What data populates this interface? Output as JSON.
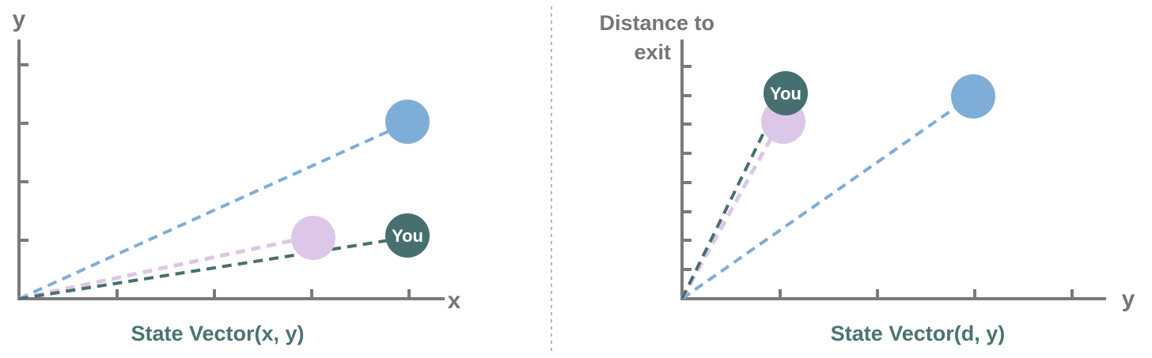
{
  "colors": {
    "axis": "#7a7a7a",
    "blue": "#7eadd8",
    "purple": "#dcc7e8",
    "teal": "#46706f",
    "caption": "#4a7472",
    "divider": "#b5b5b5"
  },
  "panels": [
    {
      "id": "left",
      "y_axis_label": "y",
      "x_axis_label": "x",
      "caption": "State Vector(x, y)",
      "points": [
        {
          "name": "blue",
          "label": ""
        },
        {
          "name": "purple",
          "label": ""
        },
        {
          "name": "you",
          "label": "You"
        }
      ]
    },
    {
      "id": "right",
      "y_axis_label_line1": "Distance to",
      "y_axis_label_line2": "exit",
      "x_axis_label": "y",
      "caption": "State Vector(d, y)",
      "points": [
        {
          "name": "blue",
          "label": ""
        },
        {
          "name": "purple",
          "label": ""
        },
        {
          "name": "you",
          "label": "You"
        }
      ]
    }
  ]
}
